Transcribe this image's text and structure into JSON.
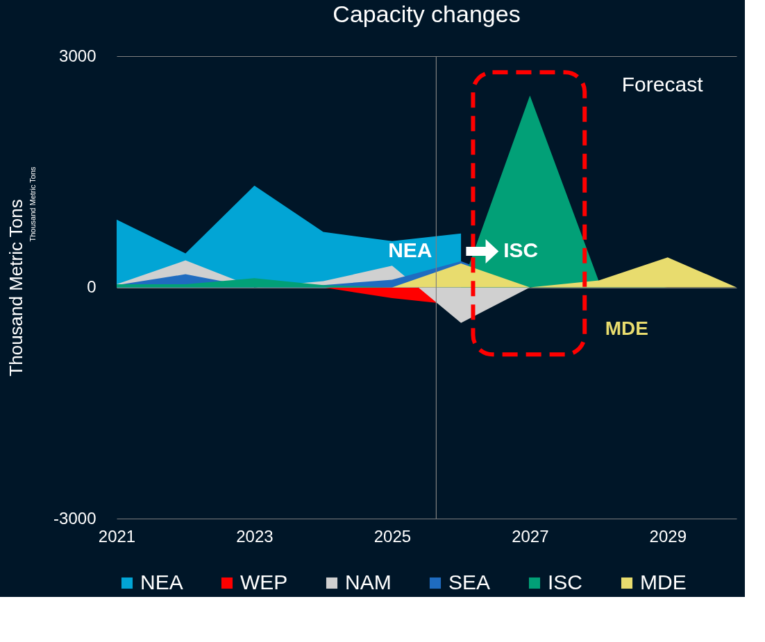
{
  "chart_data": {
    "type": "area",
    "title": "Capacity changes",
    "ylabel": "Thousand Metric Tons",
    "x": [
      2021,
      2022,
      2023,
      2024,
      2025,
      2026,
      2027,
      2028,
      2029,
      2030
    ],
    "series": [
      {
        "name": "NEA",
        "color": "#02a5d5",
        "x": [
          2021,
          2022,
          2023,
          2024,
          2025,
          2026
        ],
        "values": [
          880,
          440,
          1320,
          720,
          600,
          700
        ]
      },
      {
        "name": "WEP",
        "color": "#ff0000",
        "x": [
          2021,
          2022,
          2023,
          2024,
          2025,
          2025.64
        ],
        "values": [
          0,
          0,
          0,
          0,
          -140,
          -200
        ]
      },
      {
        "name": "NAM",
        "color": "#d0d0d0",
        "values": [
          40,
          350,
          0,
          80,
          280,
          -460,
          0,
          0,
          0,
          0
        ]
      },
      {
        "name": "SEA",
        "color": "#1f6cc0",
        "values": [
          30,
          170,
          0,
          30,
          100,
          340,
          0,
          0,
          0,
          0
        ]
      },
      {
        "name": "ISC",
        "color": "#02a077",
        "values": [
          40,
          40,
          120,
          30,
          0,
          0,
          2490,
          80,
          0,
          0
        ]
      },
      {
        "name": "MDE",
        "color": "#e8dc6e",
        "values": [
          0,
          0,
          0,
          0,
          0,
          310,
          0,
          90,
          390,
          0
        ]
      }
    ],
    "xlim": [
      2021,
      2030
    ],
    "xticks": [
      2021,
      2023,
      2025,
      2027,
      2029
    ],
    "ylim": [
      -3000,
      3000
    ],
    "yticks": [
      -3000,
      0,
      3000
    ],
    "grid": "y",
    "legend": "bottom",
    "ref_lines": [
      {
        "axis": "x",
        "value": 2025.64,
        "color": "#808080"
      }
    ],
    "annotations": [
      "Forecast",
      "NEA",
      "ISC",
      "MDE",
      "Thousand Metric Tons"
    ]
  }
}
